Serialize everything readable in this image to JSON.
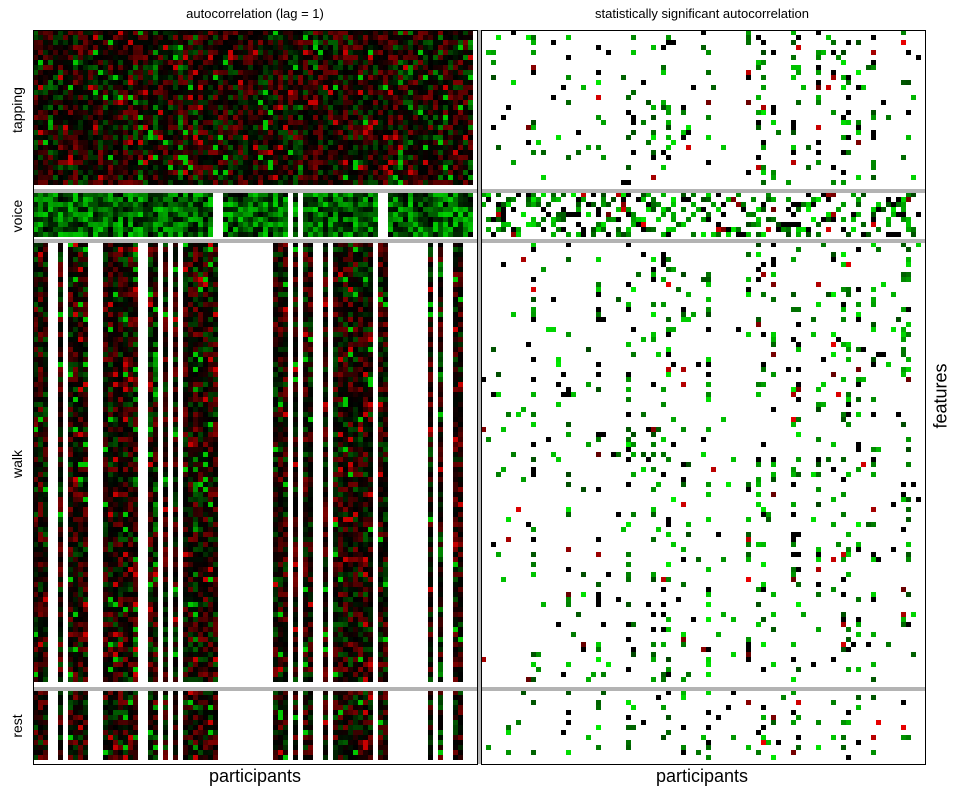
{
  "chart_data": [
    {
      "type": "heatmap",
      "title": "autocorrelation (lag = 1)",
      "xlabel": "participants",
      "ylabel": "",
      "row_groups": [
        "tapping",
        "voice",
        "walk",
        "rest"
      ],
      "color_scale": {
        "positive": "#00cc00",
        "zero": "#000000",
        "negative": "#cc0000",
        "missing": "#ffffff"
      },
      "grid": false
    },
    {
      "type": "heatmap",
      "title": "statistically significant autocorrelation",
      "xlabel": "participants",
      "ylabel": "features",
      "row_groups": [
        "tapping",
        "voice",
        "walk",
        "rest"
      ],
      "color_scale": {
        "positive": "#00cc00",
        "zero": "#000000",
        "negative": "#cc0000",
        "not_significant": "#ffffff"
      },
      "grid": false
    }
  ],
  "colors": {
    "separator": "#b3b3b3",
    "frame": "#000000"
  }
}
